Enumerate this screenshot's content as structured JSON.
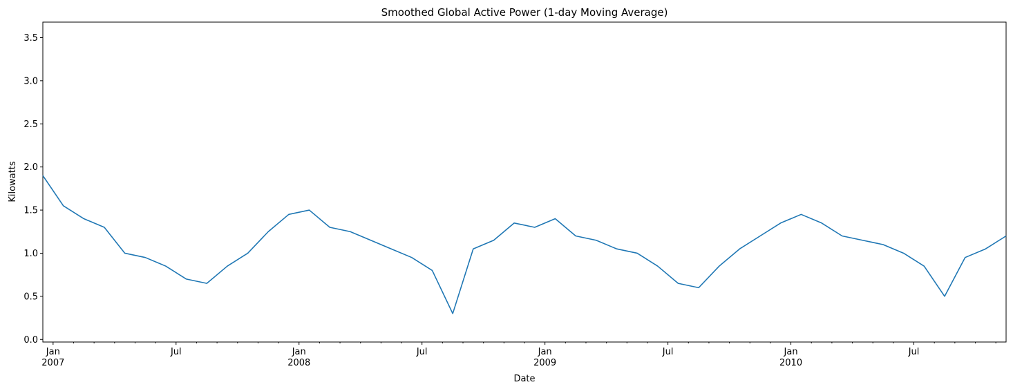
{
  "chart_data": {
    "type": "line",
    "title": "Smoothed Global Active Power (1-day Moving Average)",
    "xlabel": "Date",
    "ylabel": "Kilowatts",
    "x": [
      "2006-12",
      "2007-01",
      "2007-02",
      "2007-03",
      "2007-04",
      "2007-05",
      "2007-06",
      "2007-07",
      "2007-08",
      "2007-09",
      "2007-10",
      "2007-11",
      "2007-12",
      "2008-01",
      "2008-02",
      "2008-03",
      "2008-04",
      "2008-05",
      "2008-06",
      "2008-07",
      "2008-08",
      "2008-09",
      "2008-10",
      "2008-11",
      "2008-12",
      "2009-01",
      "2009-02",
      "2009-03",
      "2009-04",
      "2009-05",
      "2009-06",
      "2009-07",
      "2009-08",
      "2009-09",
      "2009-10",
      "2009-11",
      "2009-12",
      "2010-01",
      "2010-02",
      "2010-03",
      "2010-04",
      "2010-05",
      "2010-06",
      "2010-07",
      "2010-08",
      "2010-09",
      "2010-10",
      "2010-11"
    ],
    "series": [
      {
        "name": "Global Active Power",
        "color": "#1f77b4",
        "values": [
          1.9,
          1.55,
          1.4,
          1.3,
          1.0,
          0.95,
          0.85,
          0.7,
          0.65,
          0.85,
          1.0,
          1.25,
          1.45,
          1.5,
          1.3,
          1.25,
          1.15,
          1.05,
          0.95,
          0.8,
          0.3,
          1.05,
          1.15,
          1.35,
          1.3,
          1.4,
          1.2,
          1.15,
          1.05,
          1.0,
          0.85,
          0.65,
          0.6,
          0.85,
          1.05,
          1.2,
          1.35,
          1.45,
          1.35,
          1.2,
          1.15,
          1.1,
          1.0,
          0.85,
          0.5,
          0.95,
          1.05,
          1.2
        ]
      }
    ],
    "xlim": [
      "2006-12",
      "2010-11"
    ],
    "xticks": [
      {
        "value": "2007-01",
        "label": "Jan",
        "label2": "2007"
      },
      {
        "value": "2007-07",
        "label": "Jul"
      },
      {
        "value": "2008-01",
        "label": "Jan",
        "label2": "2008"
      },
      {
        "value": "2008-07",
        "label": "Jul"
      },
      {
        "value": "2009-01",
        "label": "Jan",
        "label2": "2009"
      },
      {
        "value": "2009-07",
        "label": "Jul"
      },
      {
        "value": "2010-01",
        "label": "Jan",
        "label2": "2010"
      },
      {
        "value": "2010-07",
        "label": "Jul"
      }
    ],
    "xminorticks": [
      "2007-02",
      "2007-03",
      "2007-04",
      "2007-05",
      "2007-06",
      "2007-08",
      "2007-09",
      "2007-10",
      "2007-11",
      "2007-12",
      "2008-02",
      "2008-03",
      "2008-04",
      "2008-05",
      "2008-06",
      "2008-08",
      "2008-09",
      "2008-10",
      "2008-11",
      "2008-12",
      "2009-02",
      "2009-03",
      "2009-04",
      "2009-05",
      "2009-06",
      "2009-08",
      "2009-09",
      "2009-10",
      "2009-11",
      "2009-12",
      "2010-02",
      "2010-03",
      "2010-04",
      "2010-05",
      "2010-06",
      "2010-08",
      "2010-09",
      "2010-10",
      "2010-11"
    ],
    "ylim": [
      -0.03,
      3.68
    ],
    "yticks": [
      {
        "value": 0,
        "label": "0.0"
      },
      0.5,
      {
        "value": 1,
        "label": "1.0"
      },
      1.5,
      {
        "value": 2,
        "label": "2.0"
      },
      2.5,
      {
        "value": 3,
        "label": "3.0"
      },
      3.5
    ],
    "grid": false
  }
}
